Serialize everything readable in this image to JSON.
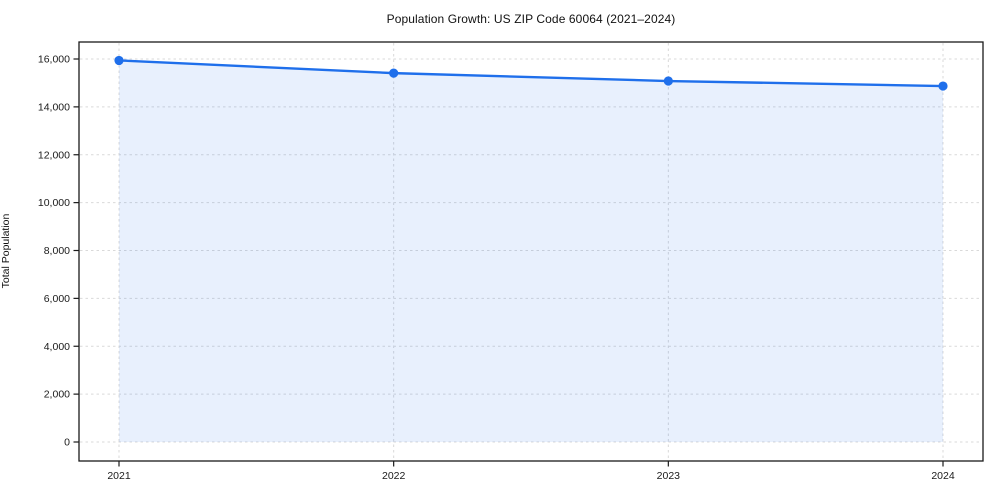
{
  "title": "Population Growth: US ZIP Code 60064 (2021–2024)",
  "chart_data": {
    "type": "area",
    "title": "Population Growth: US ZIP Code 60064 (2021–2024)",
    "xlabel": "",
    "ylabel": "Total Population",
    "categories": [
      "2021",
      "2022",
      "2023",
      "2024"
    ],
    "series": [
      {
        "name": "Total Population",
        "values": [
          15940,
          15410,
          15080,
          14870
        ]
      }
    ],
    "ylim": [
      0,
      16000
    ],
    "yticks": [
      0,
      2000,
      4000,
      6000,
      8000,
      10000,
      12000,
      14000,
      16000
    ],
    "grid": true,
    "grid_style": "dashed",
    "legend": "none",
    "colors": {
      "line": "#1f6feb",
      "marker": "#1f6feb",
      "fill": "rgba(31, 111, 235, 0.10)",
      "grid": "#d9d9d9",
      "spine": "#1a1a1a",
      "tick_text": "#1a1a1a",
      "background": "#ffffff"
    }
  }
}
